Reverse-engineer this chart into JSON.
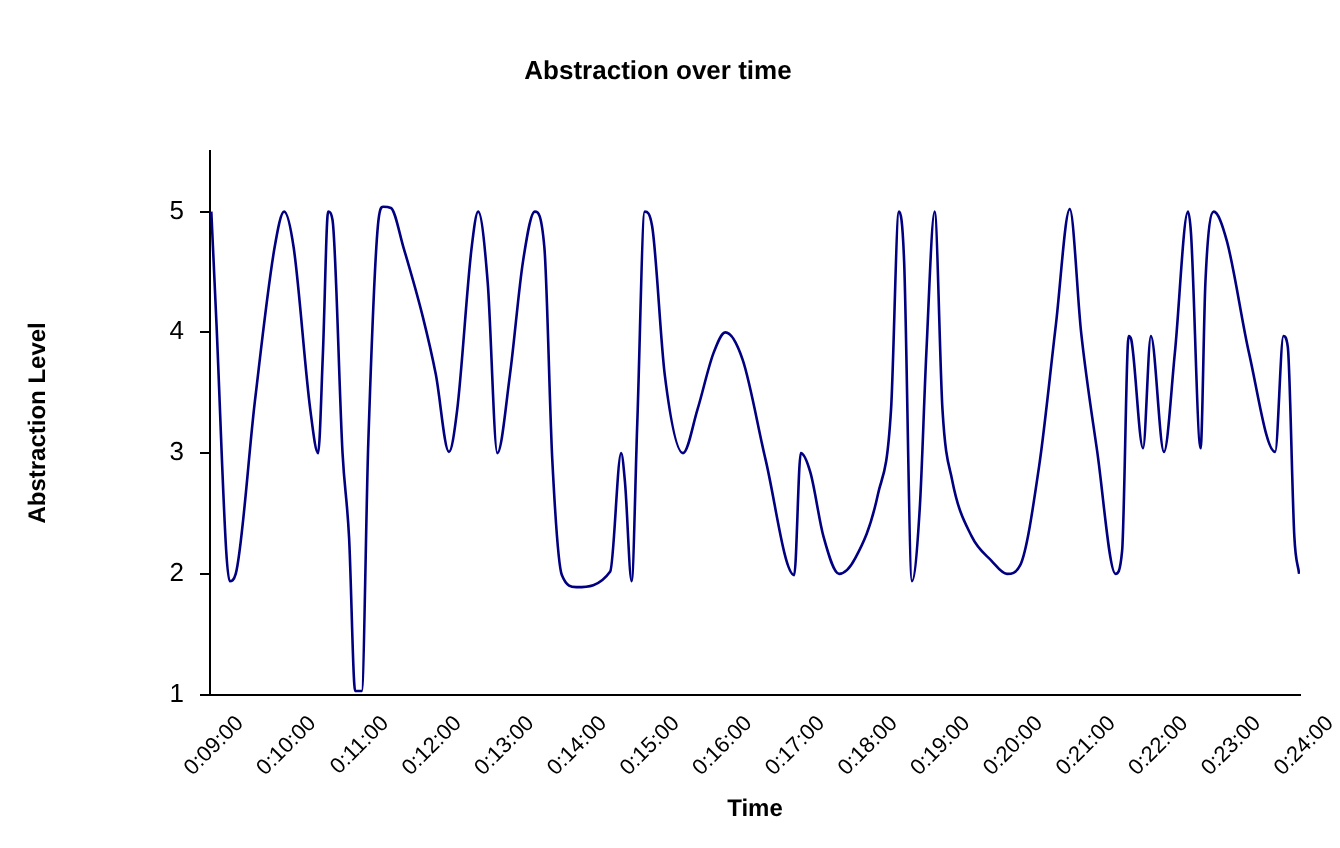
{
  "chart_data": {
    "type": "line",
    "title": "Abstraction over time",
    "xlabel": "Time",
    "ylabel": "Abstraction Level",
    "xlim": [
      0.15,
      0.4
    ],
    "xticks": [
      {
        "value": 0.15,
        "label": "0:09:00"
      },
      {
        "value": 0.166667,
        "label": "0:10:00"
      },
      {
        "value": 0.183333,
        "label": "0:11:00"
      },
      {
        "value": 0.2,
        "label": "0:12:00"
      },
      {
        "value": 0.216667,
        "label": "0:13:00"
      },
      {
        "value": 0.233333,
        "label": "0:14:00"
      },
      {
        "value": 0.25,
        "label": "0:15:00"
      },
      {
        "value": 0.266667,
        "label": "0:16:00"
      },
      {
        "value": 0.283333,
        "label": "0:17:00"
      },
      {
        "value": 0.3,
        "label": "0:18:00"
      },
      {
        "value": 0.316667,
        "label": "0:19:00"
      },
      {
        "value": 0.333333,
        "label": "0:20:00"
      },
      {
        "value": 0.35,
        "label": "0:21:00"
      },
      {
        "value": 0.366667,
        "label": "0:22:00"
      },
      {
        "value": 0.383333,
        "label": "0:23:00"
      },
      {
        "value": 0.4,
        "label": "0:24:00"
      }
    ],
    "ylim": [
      1,
      5.5
    ],
    "yticks": [
      1,
      2,
      3,
      4,
      5
    ],
    "grid": false,
    "legend": false,
    "marker": "none",
    "line_style": "solid",
    "series": [
      {
        "color": "#000080",
        "x": [
          0.1503,
          0.1515,
          0.1537,
          0.1545,
          0.1559,
          0.1603,
          0.1648,
          0.167,
          0.1692,
          0.173,
          0.1748,
          0.1759,
          0.1771,
          0.1781,
          0.1804,
          0.1819,
          0.1833,
          0.1848,
          0.1863,
          0.1885,
          0.1897,
          0.1915,
          0.1944,
          0.1988,
          0.2018,
          0.2048,
          0.2067,
          0.21,
          0.2115,
          0.2137,
          0.2159,
          0.2188,
          0.2218,
          0.2245,
          0.2267,
          0.2285,
          0.2307,
          0.234,
          0.2418,
          0.2443,
          0.2452,
          0.2467,
          0.248,
          0.2497,
          0.2514,
          0.2543,
          0.2585,
          0.2618,
          0.2655,
          0.2682,
          0.2722,
          0.2774,
          0.284,
          0.2855,
          0.2877,
          0.2907,
          0.2943,
          0.298,
          0.3032,
          0.3062,
          0.308,
          0.3092,
          0.311,
          0.3128,
          0.3143,
          0.3162,
          0.318,
          0.3202,
          0.3247,
          0.3292,
          0.3328,
          0.3358,
          0.3402,
          0.344,
          0.3472,
          0.3498,
          0.3535,
          0.3577,
          0.3592,
          0.3607,
          0.3613,
          0.364,
          0.3658,
          0.3688,
          0.3713,
          0.3743,
          0.375,
          0.3772,
          0.3783,
          0.3802,
          0.3832,
          0.3883,
          0.3943,
          0.3962,
          0.3972,
          0.3987,
          0.3998
        ],
        "values": [
          5.0,
          4.06,
          2.2,
          1.94,
          2.0,
          3.43,
          4.7,
          5.0,
          4.7,
          3.36,
          3.0,
          3.83,
          5.0,
          4.93,
          3.0,
          2.3,
          1.03,
          1.03,
          3.08,
          4.88,
          5.04,
          5.03,
          4.7,
          4.13,
          3.65,
          3.01,
          3.36,
          4.7,
          5.0,
          4.41,
          3.0,
          3.65,
          4.59,
          5.0,
          4.7,
          2.95,
          1.99,
          1.89,
          2.02,
          3.0,
          2.75,
          1.94,
          3.25,
          5.0,
          4.88,
          3.65,
          3.0,
          3.36,
          3.83,
          4.0,
          3.77,
          2.95,
          1.99,
          3.0,
          2.84,
          2.31,
          2.0,
          2.13,
          2.66,
          3.36,
          5.0,
          4.59,
          1.94,
          2.55,
          3.83,
          5.0,
          3.36,
          2.78,
          2.31,
          2.11,
          2.0,
          2.07,
          2.9,
          4.06,
          5.02,
          4.0,
          3.01,
          2.0,
          2.19,
          3.97,
          3.94,
          3.04,
          3.97,
          3.01,
          3.83,
          5.0,
          4.82,
          3.04,
          4.41,
          5.0,
          4.76,
          3.83,
          3.01,
          3.97,
          3.88,
          2.31,
          2.0
        ]
      }
    ]
  }
}
